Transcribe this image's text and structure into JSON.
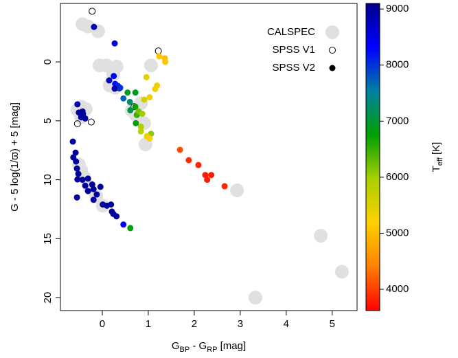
{
  "chart_data": {
    "type": "scatter",
    "xlabel": [
      {
        "text": "G"
      },
      {
        "text": "BP",
        "sub": true
      },
      {
        "text": " - G"
      },
      {
        "text": "RP",
        "sub": true
      },
      {
        "text": "  [mag]"
      }
    ],
    "ylabel": "G - 5 log(1/ϖ) + 5 [mag]",
    "xlim": [
      -0.91,
      5.54
    ],
    "xticks": [
      0,
      1,
      2,
      3,
      4,
      5
    ],
    "ylim": [
      21.1,
      -4.96
    ],
    "yticks": [
      0,
      5,
      10,
      15,
      20
    ],
    "colorbar": {
      "label": [
        {
          "text": "T"
        },
        {
          "text": "eff",
          "sub": true
        },
        {
          "text": " [K]"
        }
      ],
      "lim": [
        3620,
        9100
      ],
      "ticks": [
        4000,
        5000,
        6000,
        7000,
        8000,
        9000
      ],
      "colormap": [
        "#ff0000",
        "#ff8000",
        "#ffd000",
        "#a8d000",
        "#00a000",
        "#0080a0",
        "#0000ff",
        "#00008b"
      ]
    },
    "legend": "top-right",
    "series": [
      {
        "name": "CALSPEC",
        "color": "#e0e0e0",
        "marker": "large",
        "x": [
          -0.43,
          -0.31,
          -0.09,
          -0.06,
          0.09,
          0.24,
          0.31,
          0.16,
          0.28,
          1.06,
          -0.46,
          -0.54,
          -0.46,
          -0.36,
          0.64,
          0.73,
          0.84,
          0.91,
          0.94,
          -0.51,
          -0.46,
          -0.39,
          -0.28,
          -0.13,
          0.01,
          2.93,
          4.75,
          5.21,
          3.33
        ],
        "values": [
          -3.2,
          -3.0,
          -2.6,
          0.3,
          0.3,
          1.05,
          0.4,
          2.0,
          2.2,
          0.3,
          3.8,
          4.1,
          4.7,
          4.0,
          4.1,
          4.5,
          3.5,
          5.2,
          7.0,
          8.7,
          9.2,
          9.8,
          10.6,
          11.4,
          12.2,
          10.9,
          14.75,
          17.8,
          20.0
        ]
      },
      {
        "name": "SPSS V1",
        "color": "#000000",
        "marker": "open",
        "x": [
          -0.22,
          1.22,
          0.37,
          -0.54,
          -0.24,
          0.69
        ],
        "values": [
          -4.3,
          -0.93,
          2.2,
          5.25,
          5.1,
          3.8
        ]
      },
      {
        "name": "SPSS V2",
        "color": "#000000",
        "marker": "filled",
        "x": [
          -0.18,
          0.27,
          0.15,
          0.25,
          0.28,
          0.34,
          0.27,
          0.39,
          0.46,
          0.55,
          0.72,
          0.6,
          0.61,
          0.72,
          0.75,
          0.79,
          0.87,
          0.73,
          0.84,
          0.84,
          1.06,
          0.97,
          1.03,
          0.91,
          0.96,
          1.03,
          1.15,
          1.19,
          1.24,
          1.36,
          1.37,
          -0.54,
          -0.51,
          -0.42,
          -0.37,
          -0.46,
          -0.43,
          1.69,
          1.88,
          2.09,
          2.24,
          2.28,
          2.37,
          2.66,
          -0.64,
          -0.58,
          -0.63,
          -0.57,
          -0.55,
          -0.52,
          -0.54,
          -0.43,
          -0.37,
          -0.31,
          -0.31,
          -0.22,
          -0.19,
          -0.12,
          -0.04,
          -0.19,
          -0.55,
          0.01,
          0.1,
          0.19,
          0.21,
          0.24,
          0.31,
          0.46,
          0.61
        ],
        "values": [
          -2.97,
          -1.57,
          1.57,
          1.2,
          1.87,
          2.04,
          2.27,
          2.2,
          3.1,
          2.6,
          2.6,
          3.4,
          4.1,
          3.8,
          4.5,
          4.2,
          4.4,
          5.2,
          5.5,
          5.9,
          6.1,
          6.3,
          6.5,
          3.2,
          1.3,
          3.0,
          2.3,
          2.0,
          -0.47,
          -0.3,
          0.0,
          3.6,
          4.3,
          4.4,
          4.8,
          4.7,
          4.2,
          7.46,
          8.34,
          8.75,
          9.6,
          10.0,
          9.6,
          10.55,
          6.76,
          7.7,
          8.1,
          8.45,
          9.04,
          9.5,
          9.97,
          10.0,
          10.5,
          9.9,
          10.96,
          10.4,
          10.8,
          11.25,
          10.6,
          11.7,
          11.5,
          12.1,
          12.2,
          12.1,
          12.7,
          12.9,
          13.1,
          13.8,
          14.1
        ],
        "teff": [
          8800,
          8600,
          8800,
          8300,
          8200,
          8100,
          8900,
          8000,
          7700,
          6900,
          6900,
          7300,
          7100,
          6700,
          6500,
          6200,
          6000,
          6800,
          5900,
          5800,
          6100,
          5400,
          5200,
          5600,
          5400,
          5300,
          5300,
          5300,
          5100,
          5000,
          5100,
          8900,
          9000,
          9000,
          9000,
          9000,
          9000,
          4100,
          3900,
          3850,
          3800,
          3800,
          3800,
          3850,
          9000,
          9000,
          9000,
          9000,
          9000,
          9000,
          9000,
          9000,
          9000,
          9000,
          9000,
          9000,
          9000,
          9000,
          9000,
          9000,
          9000,
          9000,
          9000,
          9000,
          9000,
          9000,
          9000,
          8400,
          6800
        ]
      }
    ]
  }
}
